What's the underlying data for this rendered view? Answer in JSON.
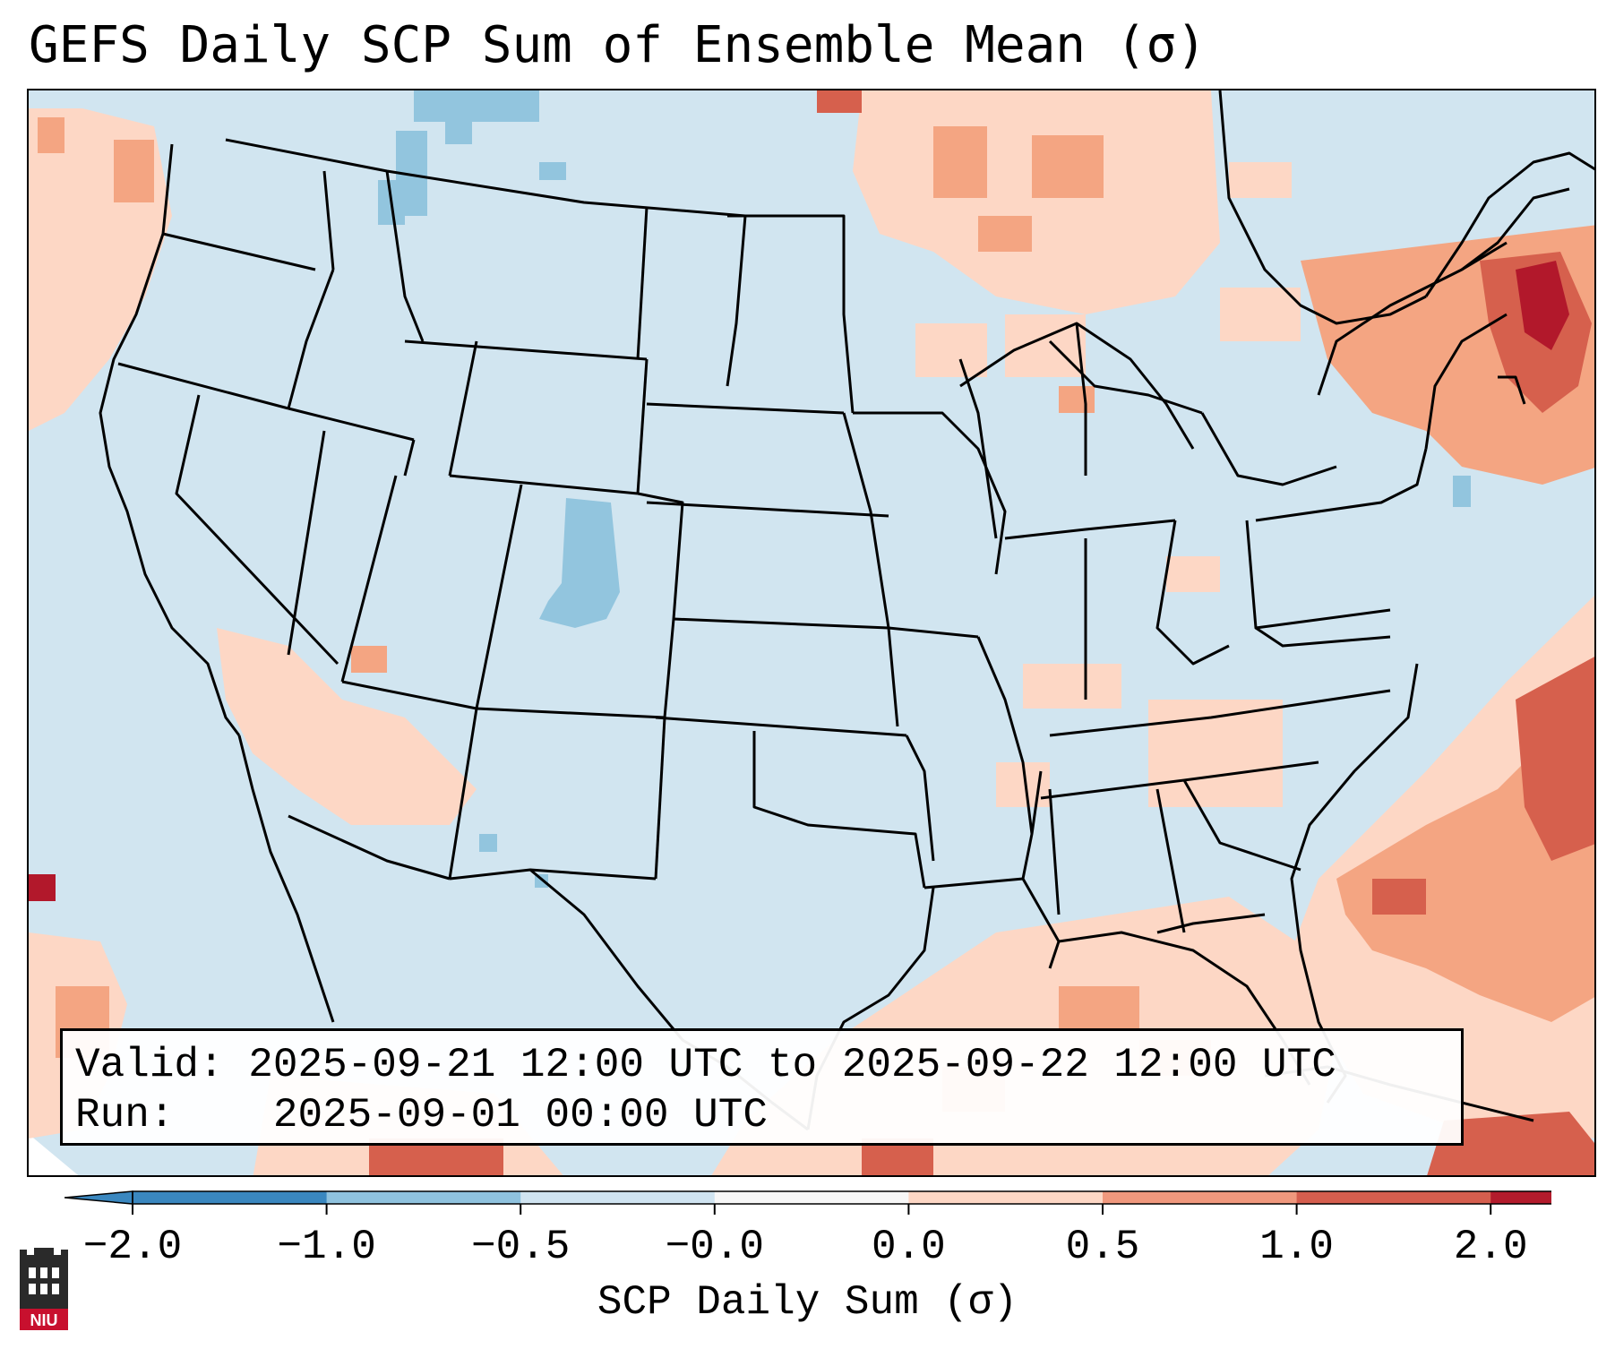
{
  "title": "GEFS Daily SCP Sum of Ensemble Mean (σ)",
  "info": {
    "valid_label": "Valid:",
    "valid_value": "2025-09-21 12:00 UTC to 2025-09-22 12:00 UTC",
    "run_label": "Run:",
    "run_value": "2025-09-01 00:00 UTC"
  },
  "colorbar": {
    "label": "SCP Daily Sum (σ)",
    "ticks": [
      "−2.0",
      "−1.0",
      "−0.5",
      "−0.0",
      "0.0",
      "0.5",
      "1.0",
      "2.0"
    ],
    "colors": [
      "#3a87bf",
      "#8fc2de",
      "#d0e4f1",
      "#f7f7f7",
      "#fdd7c5",
      "#f0987d",
      "#d55e4e",
      "#b31b2c"
    ]
  },
  "logo": {
    "text": "NIU"
  },
  "colors": {
    "land_background": "#d1e5f0",
    "outside_projection": "#ffffff",
    "border_lines": "#000000"
  }
}
